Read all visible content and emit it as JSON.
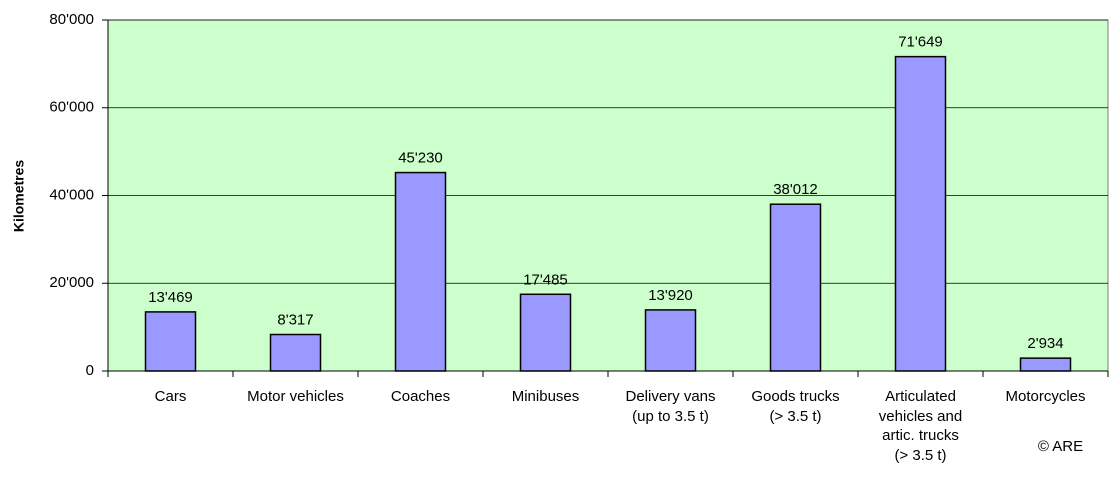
{
  "chart_data": {
    "type": "bar",
    "y_label": "Kilometres",
    "categories": [
      "Cars",
      "Motor vehicles",
      "Coaches",
      "Minibuses",
      "Delivery vans\n(up to 3.5 t)",
      "Goods trucks\n(> 3.5 t)",
      "Articulated\nvehicles and\nartic. trucks\n(> 3.5 t)",
      "Motorcycles"
    ],
    "values": [
      13469,
      8317,
      45230,
      17485,
      13920,
      38012,
      71649,
      2934
    ],
    "value_labels": [
      "13'469",
      "8'317",
      "45'230",
      "17'485",
      "13'920",
      "38'012",
      "71'649",
      "2'934"
    ],
    "color": "#9999ff",
    "plot_background": "#ccffcc",
    "ylim": [
      0,
      80000
    ],
    "yticks": [
      0,
      {
        "value": 20000,
        "label": "20'000"
      },
      {
        "value": 40000,
        "label": "40'000"
      },
      {
        "value": 60000,
        "label": "60'000"
      },
      {
        "value": 80000,
        "label": "80'000"
      }
    ],
    "grid": true,
    "annotation": "© ARE"
  }
}
